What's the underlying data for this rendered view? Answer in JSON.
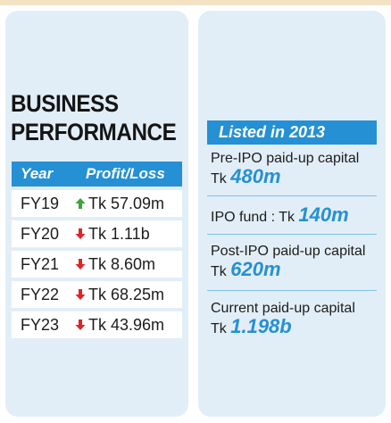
{
  "left_panel": {
    "title_line1": "BUSINESS",
    "title_line2": "PERFORMANCE",
    "table": {
      "headers": {
        "year": "Year",
        "profit": "Profit/Loss"
      },
      "rows": [
        {
          "year": "FY19",
          "value": "Tk 57.09m",
          "trend": "up"
        },
        {
          "year": "FY20",
          "value": "Tk 1.11b",
          "trend": "down"
        },
        {
          "year": "FY21",
          "value": "Tk 8.60m",
          "trend": "down"
        },
        {
          "year": "FY22",
          "value": "Tk 68.25m",
          "trend": "down"
        },
        {
          "year": "FY23",
          "value": "Tk 43.96m",
          "trend": "down"
        }
      ]
    }
  },
  "right_panel": {
    "badge": "Listed in 2013",
    "pre_ipo": {
      "label": "Pre-IPO paid-up capital",
      "prefix": "Tk",
      "value": "480m"
    },
    "ipo_fund": {
      "label": "IPO fund : Tk",
      "value": "140m"
    },
    "post_ipo": {
      "label": "Post-IPO paid-up capital",
      "prefix": "Tk",
      "value": "620m"
    },
    "current": {
      "label": "Current paid-up capital",
      "prefix": "Tk",
      "value": "1.198b"
    }
  },
  "colors": {
    "accent": "#2590d3",
    "card_bg": "#e2eef7",
    "up_arrow": "#3aa53a",
    "down_arrow": "#e0242a"
  },
  "icons": {
    "up": "green-up-arrow-icon",
    "down": "red-down-arrow-icon"
  }
}
